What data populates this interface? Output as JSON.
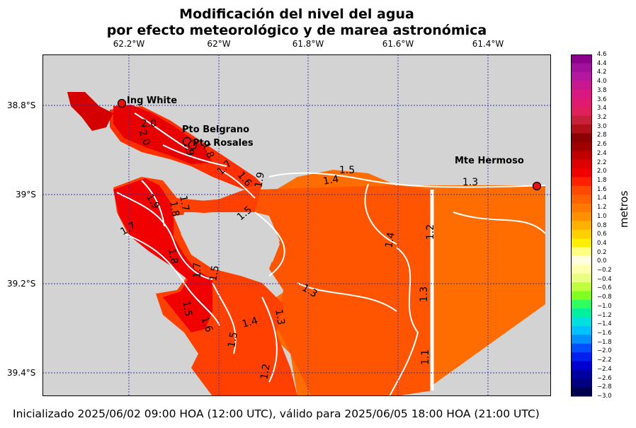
{
  "title": {
    "line1": "Modificación del nivel del agua",
    "line2": "por efecto meteorológico y de marea astronómica"
  },
  "footer": "Inicializado 2025/06/02 09:00 HOA (12:00 UTC), válido para 2025/06/05 18:00 HOA (21:00 UTC)",
  "lon_labels": [
    "62.2°W",
    "62°W",
    "61.8°W",
    "61.6°W",
    "61.4°W"
  ],
  "lat_labels": [
    "38.8°S",
    "39°S",
    "39.2°S",
    "39.4°S"
  ],
  "stations": [
    "Ing White",
    "Pto Belgrano",
    "Pto Rosales",
    "Mte Hermoso"
  ],
  "contour_labels": [
    "2.0",
    "2.0",
    "1.9",
    "1.8",
    "1.7",
    "1.6",
    "1.9",
    "1.5",
    "1.4",
    "1.3",
    "1.9",
    "1.8",
    "1.7",
    "1.7",
    "1.5",
    "1.4",
    "1.2",
    "1.3",
    "1.8",
    "1.7",
    "1.5",
    "1.3",
    "1.4",
    "1.5",
    "1.6",
    "1.5",
    "1.3",
    "1.2",
    "1.1",
    "1.5",
    "1.3"
  ],
  "colorbar": {
    "unit": "metros",
    "ticks": [
      "4.6",
      "4.4",
      "4.2",
      "4.0",
      "3.8",
      "3.6",
      "3.4",
      "3.2",
      "3.0",
      "2.8",
      "2.6",
      "2.4",
      "2.2",
      "2.0",
      "1.8",
      "1.6",
      "1.4",
      "1.2",
      "1.0",
      "0.8",
      "0.6",
      "0.4",
      "0.2",
      "0.0",
      "−0.2",
      "−0.4",
      "−0.6",
      "−0.8",
      "−1.0",
      "−1.2",
      "−1.4",
      "−1.6",
      "−1.8",
      "−2.0",
      "−2.2",
      "−2.4",
      "−2.6",
      "−2.8",
      "−3.0"
    ],
    "colors": [
      "#8b008b",
      "#a0109a",
      "#b518a0",
      "#c81890",
      "#d81880",
      "#e01a70",
      "#e0205a",
      "#c8203a",
      "#b0101a",
      "#8b0000",
      "#a00000",
      "#c00000",
      "#dd0000",
      "#f00000",
      "#ff2000",
      "#ff4800",
      "#ff6000",
      "#ff7800",
      "#ff9000",
      "#ffb000",
      "#ffd000",
      "#ffee00",
      "#ffff80",
      "#ffffe0",
      "#ffffb0",
      "#e8ff80",
      "#c0ff40",
      "#80ff20",
      "#30ff60",
      "#00f0a0",
      "#00e0e0",
      "#00c0ff",
      "#0090ff",
      "#0050ff",
      "#0020f0",
      "#0000d0",
      "#0000a0",
      "#000080",
      "#000050"
    ]
  },
  "field_colors": {
    "background": "#d3d3d3",
    "level_2_0": "#d40000",
    "level_1_8": "#f00000",
    "level_1_6": "#ff3a00",
    "level_1_4": "#ff5500",
    "level_1_2": "#ff6c00"
  }
}
